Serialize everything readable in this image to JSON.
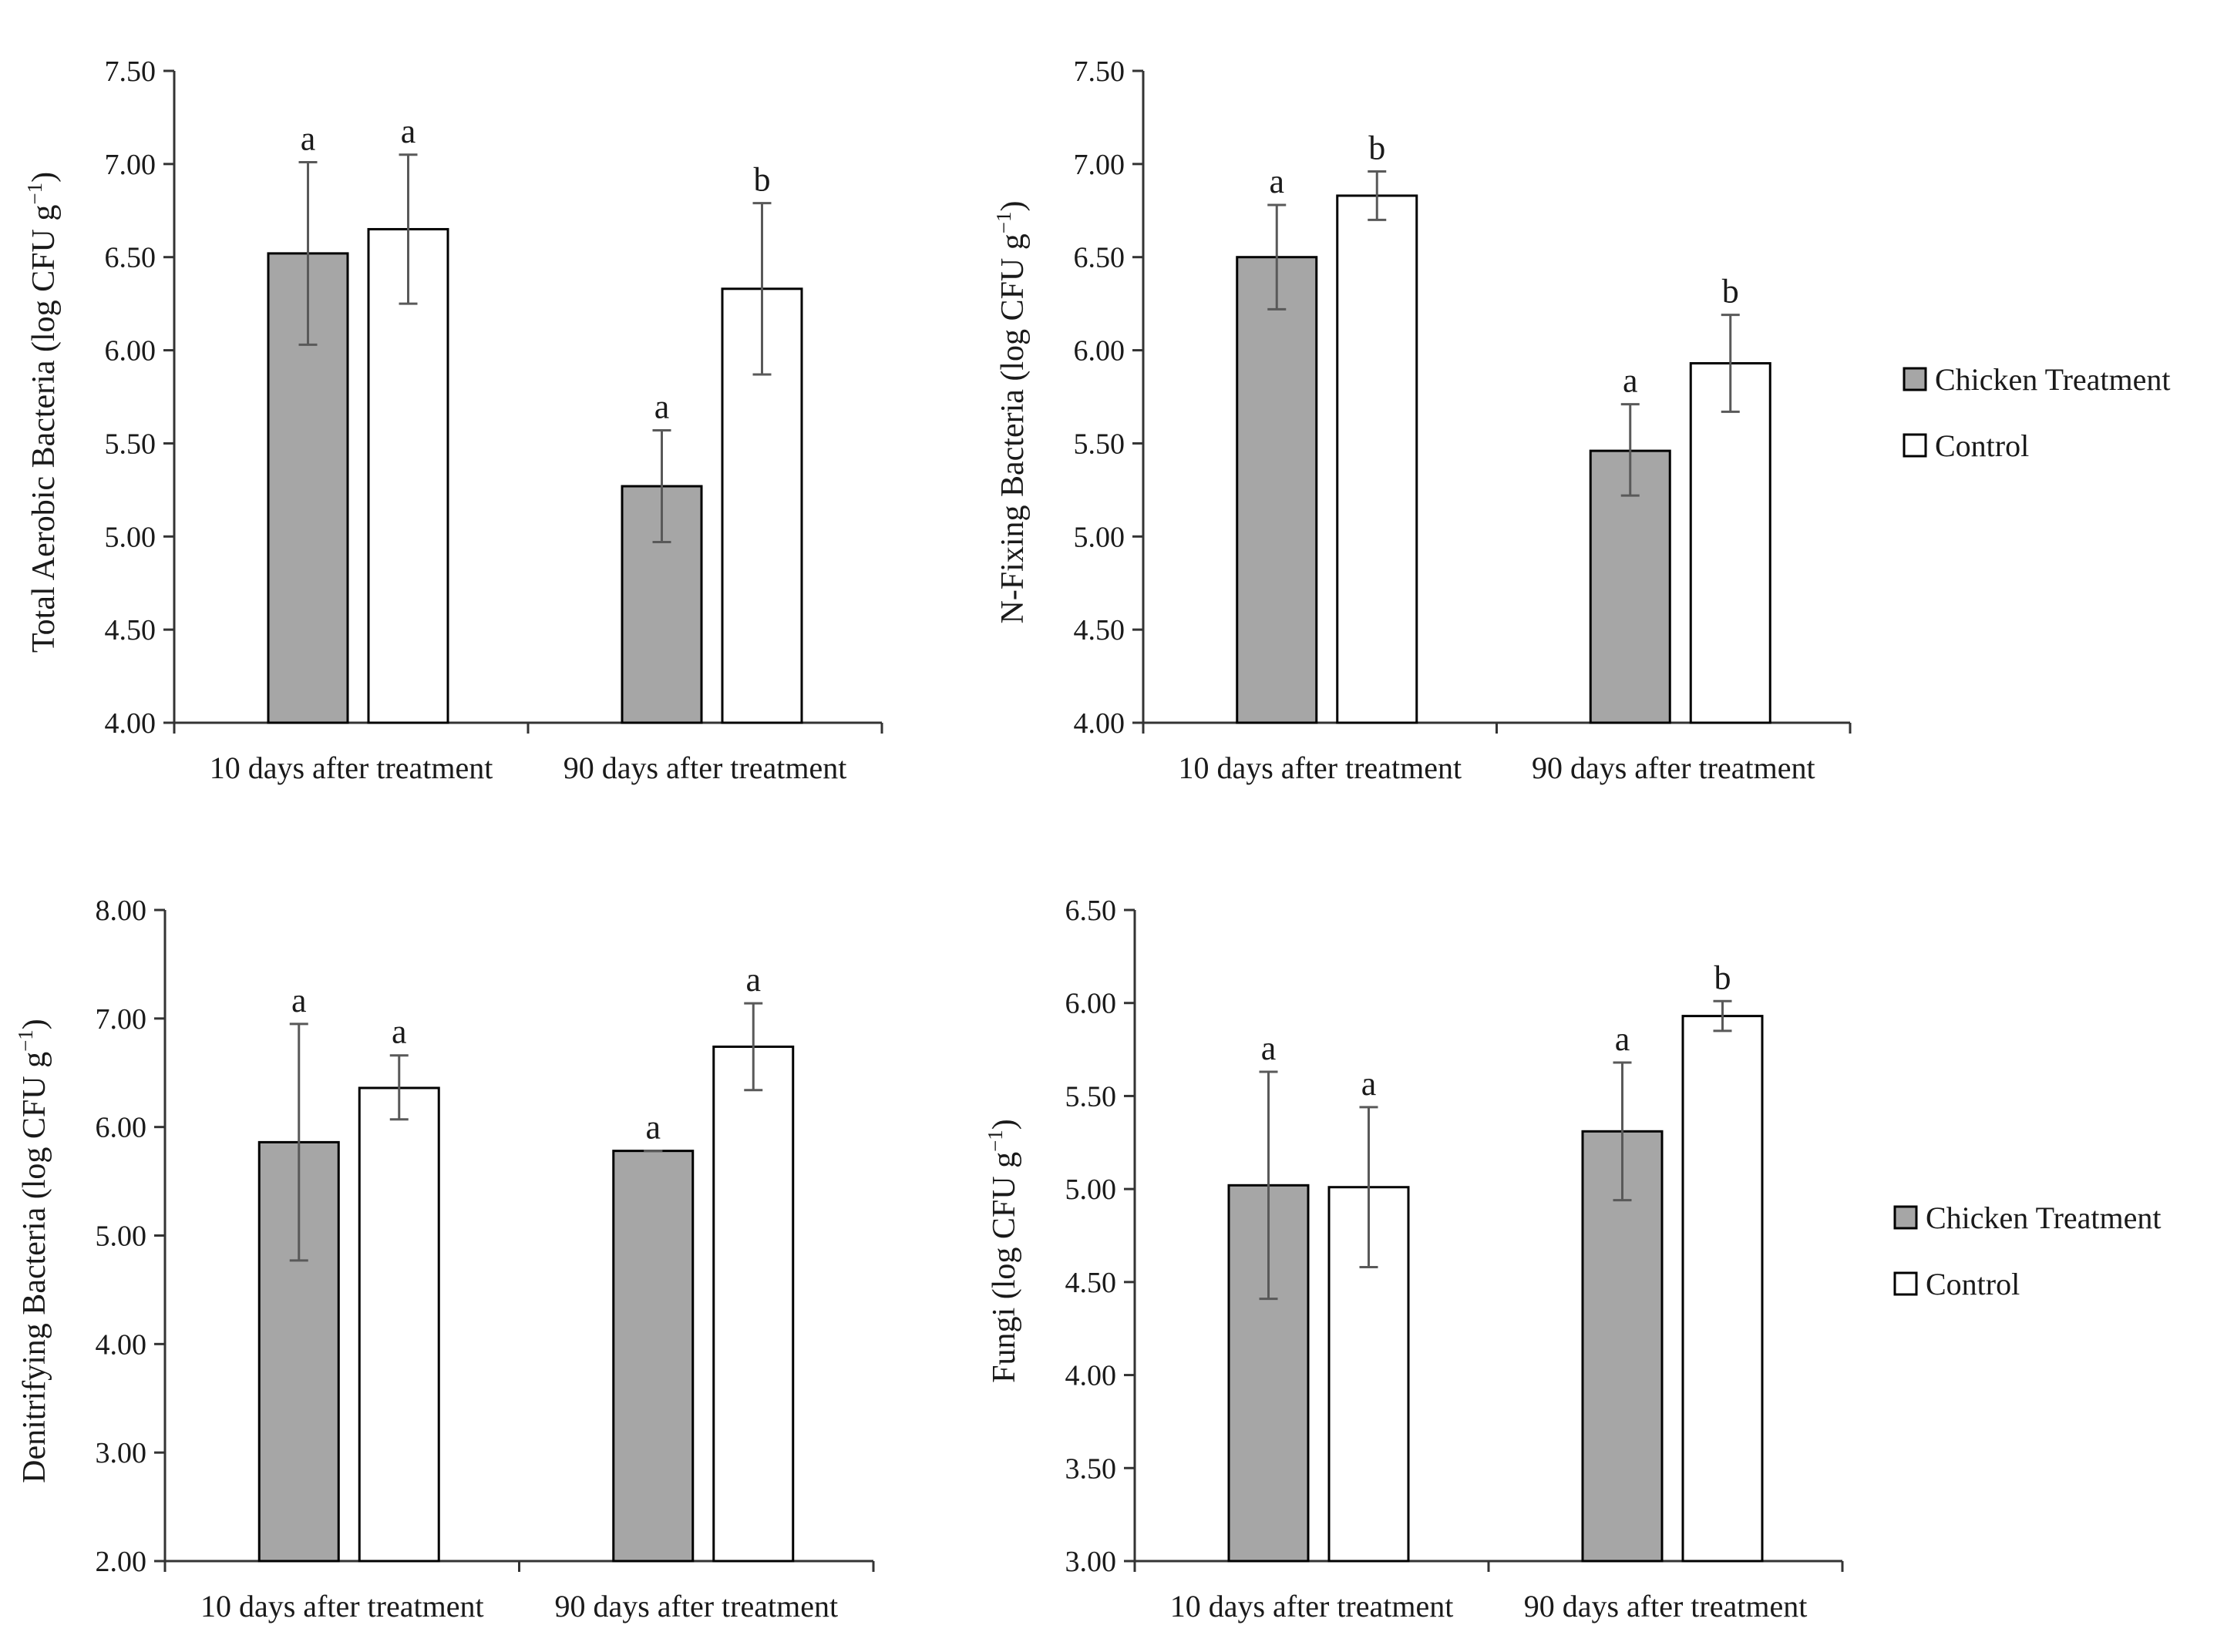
{
  "colors": {
    "treatment_fill": "#a6a6a6",
    "control_fill": "#ffffff",
    "outline": "#000000",
    "error_bar": "#595959",
    "text": "#1a1a1a"
  },
  "legend": {
    "items": [
      {
        "label": "Chicken Treatment",
        "fill": "#a6a6a6"
      },
      {
        "label": "Control",
        "fill": "#ffffff"
      }
    ]
  },
  "chart_data": [
    {
      "type": "bar",
      "panel": "top-left",
      "title": "",
      "ylabel": {
        "main": "Total Aerobic Bacteria (log CFU g",
        "sup": "−1",
        "close": ")"
      },
      "xlabel": "",
      "categories": [
        "10 days after treatment",
        "90 days after treatment"
      ],
      "ylim": [
        4.0,
        7.5
      ],
      "yticks": [
        "4.00",
        "4.50",
        "5.00",
        "5.50",
        "6.00",
        "6.50",
        "7.00",
        "7.50"
      ],
      "series": [
        {
          "name": "Chicken Treatment",
          "values": [
            6.52,
            5.27
          ],
          "err_low": [
            6.03,
            4.97
          ],
          "err_high": [
            7.01,
            5.57
          ],
          "letters": [
            "a",
            "a"
          ]
        },
        {
          "name": "Control",
          "values": [
            6.65,
            6.33
          ],
          "err_low": [
            6.25,
            5.87
          ],
          "err_high": [
            7.05,
            6.79
          ],
          "letters": [
            "a",
            "b"
          ]
        }
      ],
      "legend": false
    },
    {
      "type": "bar",
      "panel": "top-right",
      "title": "",
      "ylabel": {
        "main": "N-Fixing Bacteria (log CFU g",
        "sup": "−1",
        "close": ")"
      },
      "xlabel": "",
      "categories": [
        "10 days after treatment",
        "90 days after treatment"
      ],
      "ylim": [
        4.0,
        7.5
      ],
      "yticks": [
        "4.00",
        "4.50",
        "5.00",
        "5.50",
        "6.00",
        "6.50",
        "7.00",
        "7.50"
      ],
      "series": [
        {
          "name": "Chicken Treatment",
          "values": [
            6.5,
            5.46
          ],
          "err_low": [
            6.22,
            5.22
          ],
          "err_high": [
            6.78,
            5.71
          ],
          "letters": [
            "a",
            "a"
          ]
        },
        {
          "name": "Control",
          "values": [
            6.83,
            5.93
          ],
          "err_low": [
            6.7,
            5.67
          ],
          "err_high": [
            6.96,
            6.19
          ],
          "letters": [
            "b",
            "b"
          ]
        }
      ],
      "legend": true
    },
    {
      "type": "bar",
      "panel": "bottom-left",
      "title": "",
      "ylabel": {
        "main": "Denitrifying Bacteria (log CFU g",
        "sup": "−1",
        "close": ")"
      },
      "xlabel": "",
      "categories": [
        "10 days after treatment",
        "90 days after treatment"
      ],
      "ylim": [
        2.0,
        8.0
      ],
      "yticks": [
        "2.00",
        "3.00",
        "4.00",
        "5.00",
        "6.00",
        "7.00",
        "8.00"
      ],
      "series": [
        {
          "name": "Chicken Treatment",
          "values": [
            5.86,
            5.78
          ],
          "err_low": [
            4.77,
            5.78
          ],
          "err_high": [
            6.95,
            5.78
          ],
          "letters": [
            "a",
            "a"
          ]
        },
        {
          "name": "Control",
          "values": [
            6.36,
            6.74
          ],
          "err_low": [
            6.07,
            6.34
          ],
          "err_high": [
            6.66,
            7.14
          ],
          "letters": [
            "a",
            "a"
          ]
        }
      ],
      "legend": false
    },
    {
      "type": "bar",
      "panel": "bottom-right",
      "title": "",
      "ylabel": {
        "main": "Fungi (log CFU g",
        "sup": "−1",
        "close": ")"
      },
      "xlabel": "",
      "categories": [
        "10 days after treatment",
        "90 days after treatment"
      ],
      "ylim": [
        3.0,
        6.5
      ],
      "yticks": [
        "3.00",
        "3.50",
        "4.00",
        "4.50",
        "5.00",
        "5.50",
        "6.00",
        "6.50"
      ],
      "series": [
        {
          "name": "Chicken Treatment",
          "values": [
            5.02,
            5.31
          ],
          "err_low": [
            4.41,
            4.94
          ],
          "err_high": [
            5.63,
            5.68
          ],
          "letters": [
            "a",
            "a"
          ]
        },
        {
          "name": "Control",
          "values": [
            5.01,
            5.93
          ],
          "err_low": [
            4.58,
            5.85
          ],
          "err_high": [
            5.44,
            6.01
          ],
          "letters": [
            "a",
            "b"
          ]
        }
      ],
      "legend": true
    }
  ]
}
